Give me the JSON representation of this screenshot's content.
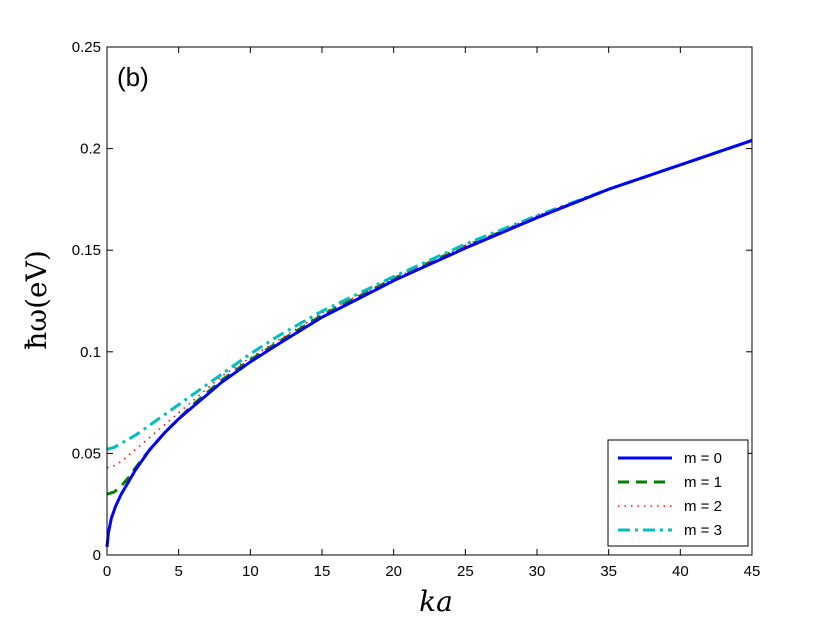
{
  "chart_data": {
    "type": "line",
    "panel_label": "(b)",
    "xlabel": "ka",
    "ylabel": "ħω(eV)",
    "xlim": [
      0,
      45
    ],
    "ylim": [
      0,
      0.25
    ],
    "xticks": [
      "0",
      "5",
      "10",
      "15",
      "20",
      "25",
      "30",
      "35",
      "40",
      "45"
    ],
    "yticks": [
      "0",
      "0.05",
      "0.1",
      "0.15",
      "0.2",
      "0.25"
    ],
    "grid": false,
    "legend_position": "bottom-right",
    "series": [
      {
        "name": "m = 0",
        "color": "#0000ff",
        "style": "solid",
        "x": [
          0,
          0.1,
          0.3,
          0.6,
          1,
          1.5,
          2,
          3,
          4,
          5,
          6,
          7,
          8,
          10,
          12,
          15,
          20,
          25,
          30,
          35,
          40,
          45
        ],
        "y": [
          0.004,
          0.011,
          0.018,
          0.024,
          0.03,
          0.036,
          0.042,
          0.052,
          0.06,
          0.067,
          0.073,
          0.079,
          0.085,
          0.095,
          0.104,
          0.117,
          0.135,
          0.151,
          0.166,
          0.18,
          0.192,
          0.204
        ]
      },
      {
        "name": "m = 1",
        "color": "#007f00",
        "style": "dashed",
        "x": [
          0,
          0.5,
          1,
          1.5,
          2,
          3,
          4,
          5,
          6,
          7,
          8,
          10,
          12,
          15,
          20,
          25,
          30,
          35,
          40,
          45
        ],
        "y": [
          0.03,
          0.031,
          0.034,
          0.038,
          0.043,
          0.052,
          0.06,
          0.067,
          0.074,
          0.08,
          0.086,
          0.096,
          0.105,
          0.118,
          0.136,
          0.152,
          0.166,
          0.18,
          0.192,
          0.204
        ]
      },
      {
        "name": "m = 2",
        "color": "#ff0000",
        "style": "dotted",
        "x": [
          0,
          0.5,
          1,
          1.5,
          2,
          3,
          4,
          5,
          6,
          7,
          8,
          10,
          12,
          15,
          20,
          25,
          30,
          35,
          40,
          45
        ],
        "y": [
          0.043,
          0.044,
          0.046,
          0.049,
          0.052,
          0.058,
          0.064,
          0.07,
          0.076,
          0.082,
          0.088,
          0.097,
          0.106,
          0.119,
          0.136,
          0.152,
          0.167,
          0.18,
          0.192,
          0.204
        ]
      },
      {
        "name": "m = 3",
        "color": "#00bfbf",
        "style": "dashdot",
        "x": [
          0,
          0.5,
          1,
          1.5,
          2,
          3,
          4,
          5,
          6,
          7,
          8,
          10,
          12,
          15,
          20,
          25,
          30,
          35,
          40,
          45
        ],
        "y": [
          0.052,
          0.053,
          0.055,
          0.057,
          0.059,
          0.064,
          0.069,
          0.074,
          0.079,
          0.084,
          0.089,
          0.099,
          0.108,
          0.12,
          0.137,
          0.153,
          0.167,
          0.18,
          0.192,
          0.204
        ]
      }
    ]
  }
}
